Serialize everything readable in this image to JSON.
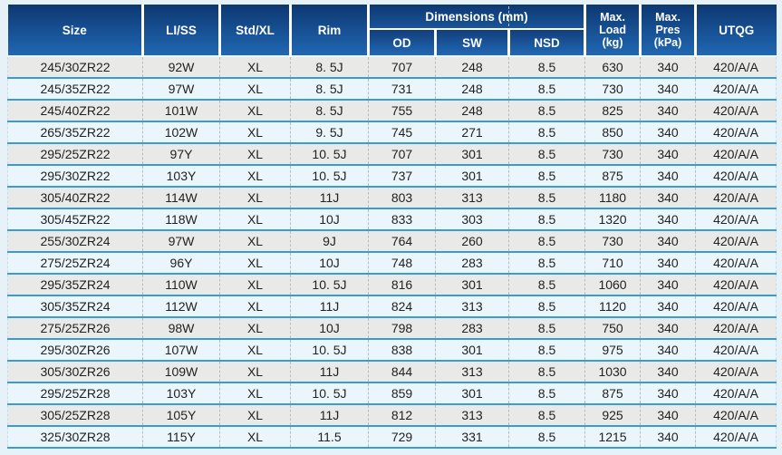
{
  "table": {
    "header": {
      "size": "Size",
      "li_ss": "LI/SS",
      "std_xl": "Std/XL",
      "rim": "Rim",
      "dimensions": "Dimensions (mm)",
      "od": "OD",
      "sw": "SW",
      "nsd": "NSD",
      "max_load": "Max.\nLoad\n(kg)",
      "max_pres": "Max.\nPres\n(kPa)",
      "utqg": "UTQG"
    },
    "column_keys": [
      "size",
      "li_ss",
      "std_xl",
      "rim",
      "od",
      "sw",
      "nsd",
      "max_load_kg",
      "max_pres_kpa",
      "utqg"
    ],
    "rows": [
      [
        "245/30ZR22",
        "92W",
        "XL",
        "8. 5J",
        "707",
        "248",
        "8.5",
        "630",
        "340",
        "420/A/A"
      ],
      [
        "245/35ZR22",
        "97W",
        "XL",
        "8. 5J",
        "731",
        "248",
        "8.5",
        "730",
        "340",
        "420/A/A"
      ],
      [
        "245/40ZR22",
        "101W",
        "XL",
        "8. 5J",
        "755",
        "248",
        "8.5",
        "825",
        "340",
        "420/A/A"
      ],
      [
        "265/35ZR22",
        "102W",
        "XL",
        "9. 5J",
        "745",
        "271",
        "8.5",
        "850",
        "340",
        "420/A/A"
      ],
      [
        "295/25ZR22",
        "97Y",
        "XL",
        "10. 5J",
        "707",
        "301",
        "8.5",
        "730",
        "340",
        "420/A/A"
      ],
      [
        "295/30ZR22",
        "103Y",
        "XL",
        "10. 5J",
        "737",
        "301",
        "8.5",
        "875",
        "340",
        "420/A/A"
      ],
      [
        "305/40ZR22",
        "114W",
        "XL",
        "11J",
        "803",
        "313",
        "8.5",
        "1180",
        "340",
        "420/A/A"
      ],
      [
        "305/45ZR22",
        "118W",
        "XL",
        "10J",
        "833",
        "303",
        "8.5",
        "1320",
        "340",
        "420/A/A"
      ],
      [
        "255/30ZR24",
        "97W",
        "XL",
        "9J",
        "764",
        "260",
        "8.5",
        "730",
        "340",
        "420/A/A"
      ],
      [
        "275/25ZR24",
        "96Y",
        "XL",
        "10J",
        "748",
        "283",
        "8.5",
        "710",
        "340",
        "420/A/A"
      ],
      [
        "295/35ZR24",
        "110W",
        "XL",
        "10. 5J",
        "816",
        "301",
        "8.5",
        "1060",
        "340",
        "420/A/A"
      ],
      [
        "305/35ZR24",
        "112W",
        "XL",
        "11J",
        "824",
        "313",
        "8.5",
        "1120",
        "340",
        "420/A/A"
      ],
      [
        "275/25ZR26",
        "98W",
        "XL",
        "10J",
        "798",
        "283",
        "8.5",
        "750",
        "340",
        "420/A/A"
      ],
      [
        "295/30ZR26",
        "107W",
        "XL",
        "10. 5J",
        "838",
        "301",
        "8.5",
        "975",
        "340",
        "420/A/A"
      ],
      [
        "305/30ZR26",
        "109W",
        "XL",
        "11J",
        "844",
        "313",
        "8.5",
        "1030",
        "340",
        "420/A/A"
      ],
      [
        "295/25ZR28",
        "103Y",
        "XL",
        "10. 5J",
        "859",
        "301",
        "8.5",
        "875",
        "340",
        "420/A/A"
      ],
      [
        "305/25ZR28",
        "105Y",
        "XL",
        "11J",
        "812",
        "313",
        "8.5",
        "925",
        "340",
        "420/A/A"
      ],
      [
        "325/30ZR28",
        "115Y",
        "XL",
        "11.5",
        "729",
        "331",
        "8.5",
        "1215",
        "340",
        "420/A/A"
      ]
    ]
  },
  "colors": {
    "page_bg": "#e7f1f8",
    "header_gradient_top": "#0d3871",
    "header_gradient_bottom": "#2067b3",
    "header_text": "#ffffff",
    "row_separator": "#3a9ccf",
    "row_odd_bg": "#e9e9e7",
    "row_even_bg": "#eaf6fc",
    "cell_text": "#222222"
  }
}
